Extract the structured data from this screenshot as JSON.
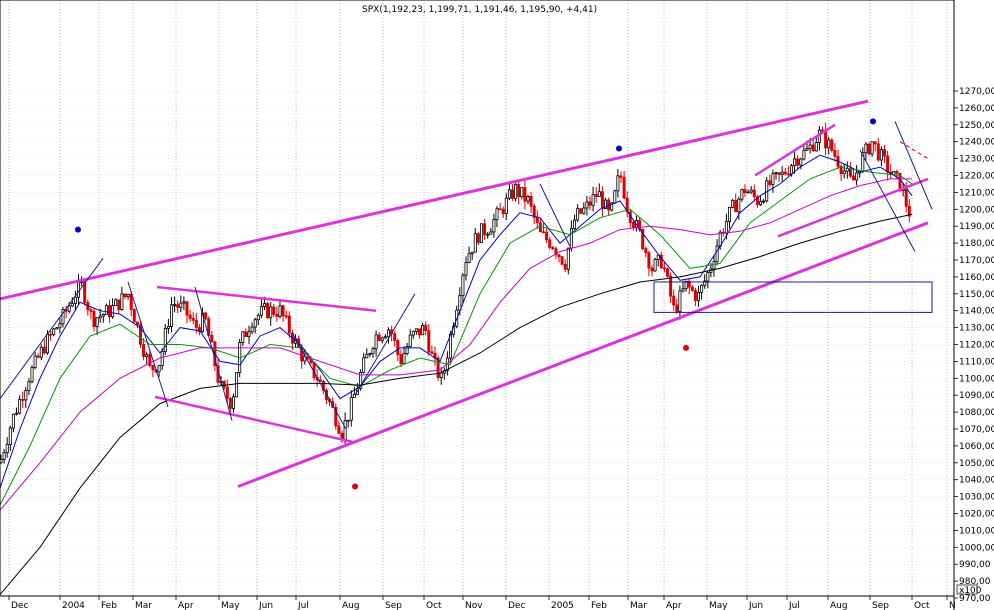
{
  "chart_data": {
    "type": "candlestick",
    "title": "SPX(1,192,23, 1,199,71, 1,191,46, 1,195,90, +4,41)",
    "ylim": [
      966,
      1276
    ],
    "y_ticks": [
      970,
      980,
      990,
      1000,
      1010,
      1020,
      1030,
      1040,
      1050,
      1060,
      1070,
      1080,
      1090,
      1100,
      1110,
      1120,
      1130,
      1140,
      1150,
      1160,
      1170,
      1180,
      1190,
      1200,
      1210,
      1220,
      1230,
      1240,
      1250,
      1260,
      1270
    ],
    "y_tick_labels": [
      "970,00",
      "980,00",
      "990,00",
      "1000,00",
      "1010,00",
      "1020,00",
      "1030,00",
      "1040,00",
      "1050,00",
      "1060,00",
      "1070,00",
      "1080,00",
      "1090,00",
      "1100,00",
      "1110,00",
      "1120,00",
      "1130,00",
      "1140,00",
      "1150,00",
      "1160,00",
      "1170,00",
      "1180,00",
      "1190,00",
      "1200,00",
      "1210,00",
      "1220,00",
      "1230,00",
      "1240,00",
      "1250,00",
      "1260,00",
      "1270,00"
    ],
    "x_ticks": [
      "Dec",
      "2004",
      "Feb",
      "Mar",
      "Apr",
      "May",
      "Jun",
      "Jul",
      "Aug",
      "Sep",
      "Oct",
      "Nov",
      "Dec",
      "2005",
      "Feb",
      "Mar",
      "Apr",
      "May",
      "Jun",
      "Jul",
      "Aug",
      "Sep",
      "Oct",
      "N"
    ],
    "scale_marker": "x100",
    "grid": true,
    "close_path": [
      [
        0,
        1050
      ],
      [
        12,
        1075
      ],
      [
        28,
        1100
      ],
      [
        45,
        1120
      ],
      [
        62,
        1135
      ],
      [
        75,
        1150
      ],
      [
        82,
        1155
      ],
      [
        92,
        1135
      ],
      [
        110,
        1140
      ],
      [
        128,
        1150
      ],
      [
        140,
        1125
      ],
      [
        150,
        1105
      ],
      [
        160,
        1110
      ],
      [
        172,
        1145
      ],
      [
        185,
        1140
      ],
      [
        195,
        1130
      ],
      [
        205,
        1135
      ],
      [
        220,
        1095
      ],
      [
        232,
        1085
      ],
      [
        240,
        1120
      ],
      [
        252,
        1135
      ],
      [
        265,
        1140
      ],
      [
        280,
        1140
      ],
      [
        292,
        1125
      ],
      [
        305,
        1110
      ],
      [
        318,
        1100
      ],
      [
        330,
        1085
      ],
      [
        342,
        1068
      ],
      [
        352,
        1085
      ],
      [
        362,
        1105
      ],
      [
        375,
        1125
      ],
      [
        390,
        1130
      ],
      [
        400,
        1110
      ],
      [
        412,
        1125
      ],
      [
        425,
        1130
      ],
      [
        433,
        1110
      ],
      [
        442,
        1098
      ],
      [
        452,
        1130
      ],
      [
        465,
        1170
      ],
      [
        478,
        1185
      ],
      [
        490,
        1190
      ],
      [
        502,
        1200
      ],
      [
        515,
        1212
      ],
      [
        528,
        1205
      ],
      [
        540,
        1185
      ],
      [
        552,
        1180
      ],
      [
        565,
        1168
      ],
      [
        575,
        1195
      ],
      [
        585,
        1200
      ],
      [
        598,
        1210
      ],
      [
        610,
        1195
      ],
      [
        620,
        1222
      ],
      [
        628,
        1200
      ],
      [
        640,
        1185
      ],
      [
        652,
        1165
      ],
      [
        662,
        1170
      ],
      [
        674,
        1140
      ],
      [
        686,
        1155
      ],
      [
        698,
        1148
      ],
      [
        710,
        1165
      ],
      [
        720,
        1185
      ],
      [
        732,
        1200
      ],
      [
        745,
        1212
      ],
      [
        758,
        1205
      ],
      [
        770,
        1215
      ],
      [
        782,
        1220
      ],
      [
        795,
        1230
      ],
      [
        808,
        1235
      ],
      [
        820,
        1245
      ],
      [
        832,
        1235
      ],
      [
        842,
        1225
      ],
      [
        852,
        1215
      ],
      [
        862,
        1230
      ],
      [
        872,
        1240
      ],
      [
        882,
        1230
      ],
      [
        892,
        1220
      ],
      [
        900,
        1215
      ],
      [
        908,
        1200
      ],
      [
        912,
        1195
      ]
    ],
    "series": [
      {
        "color": "#0000cc",
        "points": [
          [
            0,
            1035
          ],
          [
            20,
            1070
          ],
          [
            40,
            1100
          ],
          [
            60,
            1125
          ],
          [
            80,
            1145
          ],
          [
            100,
            1140
          ],
          [
            120,
            1138
          ],
          [
            140,
            1130
          ],
          [
            160,
            1115
          ],
          [
            180,
            1130
          ],
          [
            200,
            1128
          ],
          [
            220,
            1110
          ],
          [
            240,
            1108
          ],
          [
            260,
            1125
          ],
          [
            280,
            1130
          ],
          [
            300,
            1120
          ],
          [
            320,
            1105
          ],
          [
            340,
            1088
          ],
          [
            360,
            1095
          ],
          [
            380,
            1110
          ],
          [
            400,
            1118
          ],
          [
            420,
            1118
          ],
          [
            440,
            1110
          ],
          [
            460,
            1140
          ],
          [
            480,
            1170
          ],
          [
            500,
            1185
          ],
          [
            520,
            1198
          ],
          [
            540,
            1195
          ],
          [
            560,
            1180
          ],
          [
            580,
            1190
          ],
          [
            600,
            1200
          ],
          [
            620,
            1205
          ],
          [
            640,
            1188
          ],
          [
            660,
            1172
          ],
          [
            680,
            1158
          ],
          [
            700,
            1160
          ],
          [
            720,
            1178
          ],
          [
            740,
            1198
          ],
          [
            760,
            1208
          ],
          [
            780,
            1215
          ],
          [
            800,
            1225
          ],
          [
            820,
            1232
          ],
          [
            840,
            1228
          ],
          [
            860,
            1222
          ],
          [
            880,
            1225
          ],
          [
            900,
            1218
          ],
          [
            912,
            1208
          ]
        ]
      },
      {
        "color": "#009900",
        "points": [
          [
            0,
            1025
          ],
          [
            30,
            1060
          ],
          [
            60,
            1100
          ],
          [
            90,
            1125
          ],
          [
            120,
            1132
          ],
          [
            150,
            1120
          ],
          [
            180,
            1120
          ],
          [
            210,
            1118
          ],
          [
            240,
            1112
          ],
          [
            270,
            1120
          ],
          [
            300,
            1118
          ],
          [
            330,
            1100
          ],
          [
            360,
            1095
          ],
          [
            390,
            1105
          ],
          [
            420,
            1112
          ],
          [
            450,
            1108
          ],
          [
            480,
            1150
          ],
          [
            510,
            1180
          ],
          [
            540,
            1190
          ],
          [
            570,
            1185
          ],
          [
            600,
            1195
          ],
          [
            630,
            1200
          ],
          [
            660,
            1185
          ],
          [
            690,
            1165
          ],
          [
            720,
            1168
          ],
          [
            750,
            1192
          ],
          [
            780,
            1205
          ],
          [
            810,
            1218
          ],
          [
            840,
            1225
          ],
          [
            870,
            1222
          ],
          [
            900,
            1220
          ],
          [
            912,
            1215
          ]
        ]
      },
      {
        "color": "#cc00cc",
        "points": [
          [
            0,
            1022
          ],
          [
            40,
            1050
          ],
          [
            80,
            1080
          ],
          [
            120,
            1100
          ],
          [
            160,
            1112
          ],
          [
            200,
            1118
          ],
          [
            240,
            1118
          ],
          [
            280,
            1118
          ],
          [
            320,
            1110
          ],
          [
            360,
            1102
          ],
          [
            400,
            1102
          ],
          [
            440,
            1105
          ],
          [
            470,
            1120
          ],
          [
            500,
            1145
          ],
          [
            530,
            1165
          ],
          [
            560,
            1175
          ],
          [
            590,
            1180
          ],
          [
            620,
            1188
          ],
          [
            650,
            1190
          ],
          [
            680,
            1188
          ],
          [
            710,
            1185
          ],
          [
            740,
            1187
          ],
          [
            770,
            1192
          ],
          [
            800,
            1200
          ],
          [
            830,
            1208
          ],
          [
            860,
            1214
          ],
          [
            890,
            1218
          ],
          [
            912,
            1218
          ]
        ]
      },
      {
        "color": "#000000",
        "points": [
          [
            0,
            972
          ],
          [
            40,
            1000
          ],
          [
            80,
            1035
          ],
          [
            120,
            1065
          ],
          [
            160,
            1085
          ],
          [
            200,
            1094
          ],
          [
            240,
            1097
          ],
          [
            280,
            1097
          ],
          [
            320,
            1097
          ],
          [
            360,
            1096
          ],
          [
            400,
            1100
          ],
          [
            440,
            1103
          ],
          [
            480,
            1115
          ],
          [
            520,
            1130
          ],
          [
            560,
            1142
          ],
          [
            600,
            1150
          ],
          [
            640,
            1157
          ],
          [
            680,
            1160
          ],
          [
            720,
            1165
          ],
          [
            760,
            1172
          ],
          [
            800,
            1180
          ],
          [
            840,
            1187
          ],
          [
            880,
            1193
          ],
          [
            912,
            1197
          ]
        ]
      }
    ],
    "trendlines": [
      {
        "color": "#dd33dd",
        "width": 3,
        "points": [
          [
            0,
            1147
          ],
          [
            868,
            1264
          ]
        ]
      },
      {
        "color": "#dd33dd",
        "width": 3,
        "points": [
          [
            238,
            1036
          ],
          [
            928,
            1192
          ]
        ]
      },
      {
        "color": "#dd33dd",
        "width": 2.5,
        "points": [
          [
            155,
            1089
          ],
          [
            355,
            1062
          ]
        ]
      },
      {
        "color": "#dd33dd",
        "width": 2.5,
        "points": [
          [
            157,
            1154
          ],
          [
            376,
            1140
          ]
        ]
      },
      {
        "color": "#dd33dd",
        "width": 2.5,
        "points": [
          [
            755,
            1220
          ],
          [
            835,
            1250
          ]
        ]
      },
      {
        "color": "#dd33dd",
        "width": 2.5,
        "points": [
          [
            778,
            1184
          ],
          [
            928,
            1218
          ]
        ]
      },
      {
        "color": "#1a1a8c",
        "width": 1,
        "points": [
          [
            0,
            1088
          ],
          [
            103,
            1171
          ]
        ]
      },
      {
        "color": "#1a1a8c",
        "width": 1,
        "points": [
          [
            128,
            1157
          ],
          [
            168,
            1083
          ]
        ]
      },
      {
        "color": "#1a1a8c",
        "width": 1,
        "points": [
          [
            195,
            1154
          ],
          [
            232,
            1075
          ]
        ]
      },
      {
        "color": "#1a1a8c",
        "width": 1,
        "points": [
          [
            292,
            1127
          ],
          [
            346,
            1070
          ]
        ]
      },
      {
        "color": "#1a1a8c",
        "width": 1,
        "points": [
          [
            355,
            1090
          ],
          [
            415,
            1150
          ]
        ]
      },
      {
        "color": "#1a1a8c",
        "width": 1,
        "points": [
          [
            540,
            1215
          ],
          [
            570,
            1178
          ]
        ]
      },
      {
        "color": "#1a1a8c",
        "width": 1,
        "points": [
          [
            860,
            1235
          ],
          [
            915,
            1175
          ]
        ]
      },
      {
        "color": "#1a1a8c",
        "width": 1,
        "points": [
          [
            895,
            1252
          ],
          [
            932,
            1200
          ]
        ]
      },
      {
        "color": "#cc0000",
        "width": 1,
        "dash": "4,3",
        "points": [
          [
            900,
            1240
          ],
          [
            928,
            1230
          ]
        ]
      }
    ],
    "box": {
      "x1": 654,
      "x2": 932,
      "y1": 1157,
      "y2": 1139,
      "color": "#1a1a8c"
    },
    "dots": [
      {
        "x": 78,
        "y": 1188,
        "color": "#0000cc"
      },
      {
        "x": 619,
        "y": 1236,
        "color": "#0000cc"
      },
      {
        "x": 873,
        "y": 1252,
        "color": "#0000cc"
      },
      {
        "x": 355,
        "y": 1036,
        "color": "#e00000"
      },
      {
        "x": 686,
        "y": 1118,
        "color": "#e00000"
      }
    ]
  }
}
